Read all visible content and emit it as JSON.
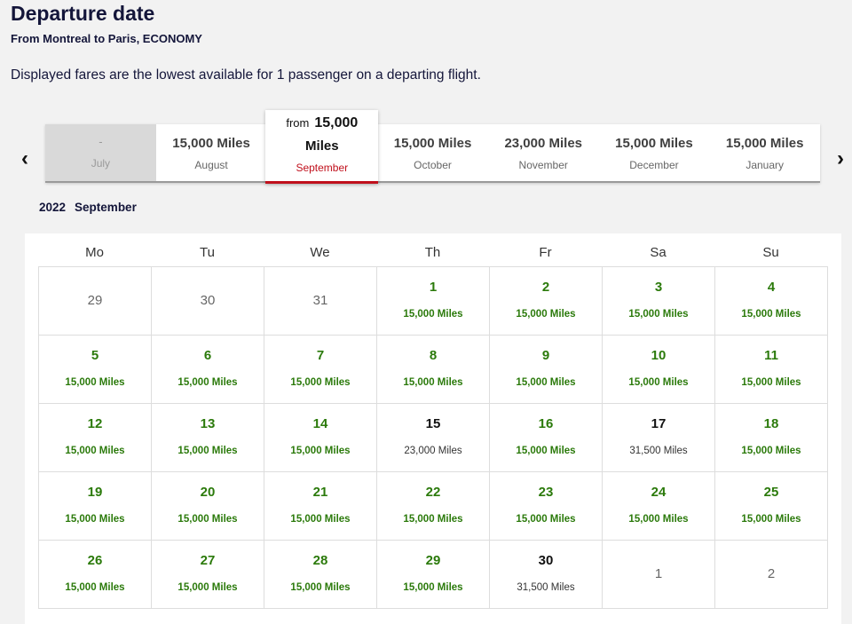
{
  "header": {
    "title": "Departure date",
    "subtitle": "From Montreal to Paris, ECONOMY",
    "note": "Displayed fares are the lowest available for 1 passenger on a departing flight."
  },
  "month_nav": {
    "prev_icon": "chevron-left-icon",
    "next_icon": "chevron-right-icon",
    "months": [
      {
        "price": "-",
        "name": "July",
        "state": "disabled"
      },
      {
        "price": "15,000 Miles",
        "name": "August",
        "state": "normal"
      },
      {
        "from": "from",
        "price_amount": "15,000",
        "price_unit": "Miles",
        "name": "September",
        "state": "selected"
      },
      {
        "price": "15,000 Miles",
        "name": "October",
        "state": "normal"
      },
      {
        "price": "23,000 Miles",
        "name": "November",
        "state": "normal"
      },
      {
        "price": "15,000 Miles",
        "name": "December",
        "state": "normal"
      },
      {
        "price": "15,000 Miles",
        "name": "January",
        "state": "normal"
      }
    ],
    "selected_color": "#c0101c"
  },
  "calendar": {
    "year": "2022",
    "month": "September",
    "weekdays": [
      "Mo",
      "Tu",
      "We",
      "Th",
      "Fr",
      "Sa",
      "Su"
    ],
    "lowest_fare_color": "#2b7a0b",
    "weeks": [
      [
        {
          "day": "29",
          "fare": "",
          "type": "other"
        },
        {
          "day": "30",
          "fare": "",
          "type": "other"
        },
        {
          "day": "31",
          "fare": "",
          "type": "other"
        },
        {
          "day": "1",
          "fare": "15,000 Miles",
          "type": "lowest"
        },
        {
          "day": "2",
          "fare": "15,000 Miles",
          "type": "lowest"
        },
        {
          "day": "3",
          "fare": "15,000 Miles",
          "type": "lowest"
        },
        {
          "day": "4",
          "fare": "15,000 Miles",
          "type": "lowest"
        }
      ],
      [
        {
          "day": "5",
          "fare": "15,000 Miles",
          "type": "lowest"
        },
        {
          "day": "6",
          "fare": "15,000 Miles",
          "type": "lowest"
        },
        {
          "day": "7",
          "fare": "15,000 Miles",
          "type": "lowest"
        },
        {
          "day": "8",
          "fare": "15,000 Miles",
          "type": "lowest"
        },
        {
          "day": "9",
          "fare": "15,000 Miles",
          "type": "lowest"
        },
        {
          "day": "10",
          "fare": "15,000 Miles",
          "type": "lowest"
        },
        {
          "day": "11",
          "fare": "15,000 Miles",
          "type": "lowest"
        }
      ],
      [
        {
          "day": "12",
          "fare": "15,000 Miles",
          "type": "lowest"
        },
        {
          "day": "13",
          "fare": "15,000 Miles",
          "type": "lowest"
        },
        {
          "day": "14",
          "fare": "15,000 Miles",
          "type": "lowest"
        },
        {
          "day": "15",
          "fare": "23,000 Miles",
          "type": "regular"
        },
        {
          "day": "16",
          "fare": "15,000 Miles",
          "type": "lowest"
        },
        {
          "day": "17",
          "fare": "31,500 Miles",
          "type": "regular"
        },
        {
          "day": "18",
          "fare": "15,000 Miles",
          "type": "lowest"
        }
      ],
      [
        {
          "day": "19",
          "fare": "15,000 Miles",
          "type": "lowest"
        },
        {
          "day": "20",
          "fare": "15,000 Miles",
          "type": "lowest"
        },
        {
          "day": "21",
          "fare": "15,000 Miles",
          "type": "lowest"
        },
        {
          "day": "22",
          "fare": "15,000 Miles",
          "type": "lowest"
        },
        {
          "day": "23",
          "fare": "15,000 Miles",
          "type": "lowest"
        },
        {
          "day": "24",
          "fare": "15,000 Miles",
          "type": "lowest"
        },
        {
          "day": "25",
          "fare": "15,000 Miles",
          "type": "lowest"
        }
      ],
      [
        {
          "day": "26",
          "fare": "15,000 Miles",
          "type": "lowest"
        },
        {
          "day": "27",
          "fare": "15,000 Miles",
          "type": "lowest"
        },
        {
          "day": "28",
          "fare": "15,000 Miles",
          "type": "lowest"
        },
        {
          "day": "29",
          "fare": "15,000 Miles",
          "type": "lowest"
        },
        {
          "day": "30",
          "fare": "31,500 Miles",
          "type": "regular"
        },
        {
          "day": "1",
          "fare": "",
          "type": "other"
        },
        {
          "day": "2",
          "fare": "",
          "type": "other"
        }
      ]
    ]
  }
}
